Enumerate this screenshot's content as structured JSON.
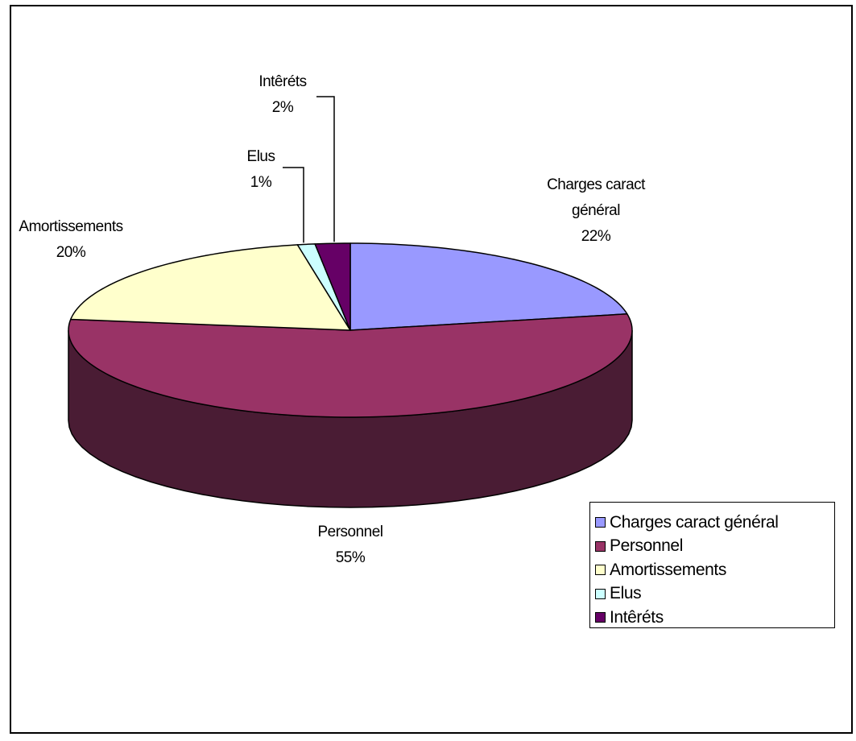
{
  "chart_data": {
    "type": "pie",
    "three_d": true,
    "title": "",
    "slices": [
      {
        "label": "Charges caract général",
        "value": 22,
        "pct_label": "22%",
        "color": "#9999ff",
        "side_color": "#5c5c99"
      },
      {
        "label": "Personnel",
        "value": 55,
        "pct_label": "55%",
        "color": "#993366",
        "side_color": "#4a1c34"
      },
      {
        "label": "Amortissements",
        "value": 20,
        "pct_label": "20%",
        "color": "#ffffcc",
        "side_color": "#99997a"
      },
      {
        "label": "Elus",
        "value": 1,
        "pct_label": "1%",
        "color": "#ccffff",
        "side_color": "#7a9999"
      },
      {
        "label": "Intêréts",
        "value": 2,
        "pct_label": "2%",
        "color": "#660066",
        "side_color": "#3d003d"
      }
    ],
    "legend": {
      "position": "bottom-right"
    },
    "label_layout": [
      {
        "lines": [
          "Charges caract",
          "général",
          "22%"
        ]
      },
      {
        "lines": [
          "Personnel",
          "55%"
        ]
      },
      {
        "lines": [
          "Amortissements",
          "20%"
        ]
      },
      {
        "lines": [
          "Elus",
          "1%"
        ]
      },
      {
        "lines": [
          "Intêréts",
          "2%"
        ]
      }
    ]
  }
}
